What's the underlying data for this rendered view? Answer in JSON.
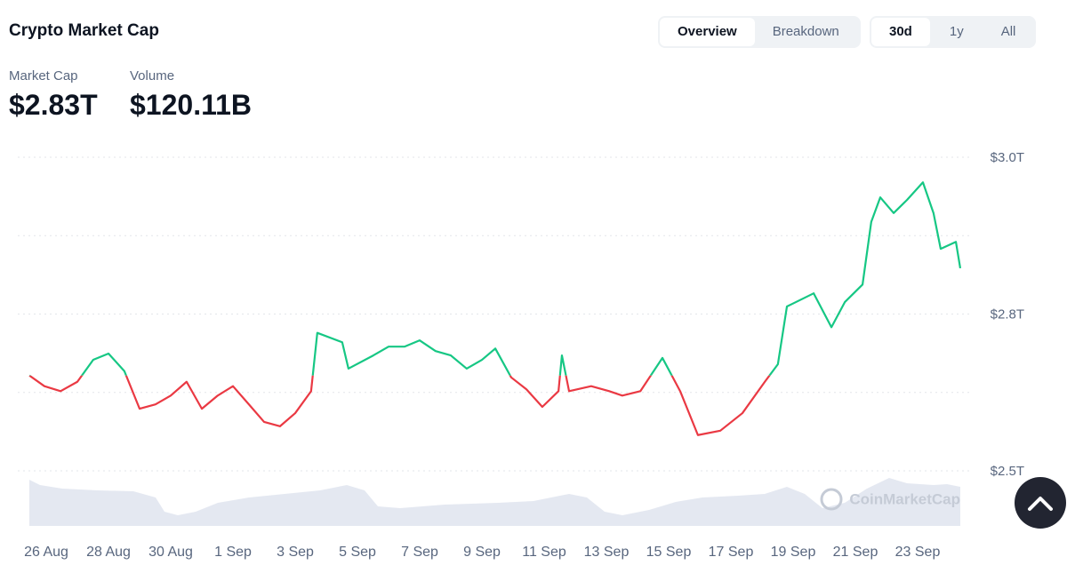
{
  "header": {
    "title": "Crypto Market Cap"
  },
  "stats": [
    {
      "label": "Market Cap",
      "value": "$2.83T"
    },
    {
      "label": "Volume",
      "value": "$120.11B"
    }
  ],
  "view_tabs": [
    "Overview",
    "Breakdown"
  ],
  "range_tabs": [
    "30d",
    "1y",
    "All"
  ],
  "chart_data": {
    "type": "line",
    "watermark": "CoinMarketCap",
    "x": [
      -0.54,
      -0.06,
      0.46,
      1.0,
      1.51,
      2.0,
      2.51,
      3.0,
      3.51,
      4.0,
      4.51,
      5.0,
      5.51,
      6.0,
      6.51,
      7.0,
      7.51,
      8.0,
      8.51,
      8.71,
      9.51,
      9.71,
      10.51,
      11.0,
      11.51,
      12.0,
      12.51,
      13.0,
      13.51,
      14.0,
      14.43,
      14.94,
      15.43,
      15.94,
      16.46,
      16.57,
      16.8,
      17.51,
      18.09,
      18.51,
      19.09,
      19.8,
      20.37,
      20.94,
      21.66,
      22.37,
      23.09,
      23.51,
      23.8,
      24.66,
      25.23,
      25.66,
      26.23,
      26.51,
      26.8,
      27.23,
      27.66,
      28.17,
      28.51,
      28.74,
      29.23,
      29.37
    ],
    "series": [
      {
        "name": "Market Cap",
        "up_color": "#16c784",
        "down_color": "#ea3943",
        "values": [
          2.652,
          2.635,
          2.627,
          2.642,
          2.677,
          2.687,
          2.659,
          2.599,
          2.606,
          2.62,
          2.642,
          2.599,
          2.62,
          2.635,
          2.606,
          2.578,
          2.571,
          2.592,
          2.627,
          2.72,
          2.705,
          2.663,
          2.684,
          2.698,
          2.698,
          2.708,
          2.691,
          2.684,
          2.663,
          2.677,
          2.695,
          2.649,
          2.63,
          2.602,
          2.627,
          2.684,
          2.627,
          2.635,
          2.627,
          2.62,
          2.627,
          2.68,
          2.627,
          2.557,
          2.564,
          2.592,
          2.642,
          2.67,
          2.762,
          2.783,
          2.729,
          2.769,
          2.797,
          2.897,
          2.936,
          2.911,
          2.932,
          2.96,
          2.911,
          2.854,
          2.865,
          2.823
        ]
      }
    ],
    "xlim": [
      -0.543,
      29.371
    ],
    "xticks": [
      {
        "value": 0,
        "label": "26 Aug"
      },
      {
        "value": 2,
        "label": "28 Aug"
      },
      {
        "value": 4,
        "label": "30 Aug"
      },
      {
        "value": 6,
        "label": "1 Sep"
      },
      {
        "value": 8,
        "label": "3 Sep"
      },
      {
        "value": 10,
        "label": "5 Sep"
      },
      {
        "value": 12,
        "label": "7 Sep"
      },
      {
        "value": 14,
        "label": "9 Sep"
      },
      {
        "value": 16,
        "label": "11 Sep"
      },
      {
        "value": 18,
        "label": "13 Sep"
      },
      {
        "value": 20,
        "label": "15 Sep"
      },
      {
        "value": 22,
        "label": "17 Sep"
      },
      {
        "value": 24,
        "label": "19 Sep"
      },
      {
        "value": 26,
        "label": "21 Sep"
      },
      {
        "value": 28,
        "label": "23 Sep"
      }
    ],
    "ylim": [
      2.5,
      3.0
    ],
    "yticks": [
      {
        "value": 3.0,
        "label": "$3.0T"
      },
      {
        "value": 2.75,
        "label": "$2.8T"
      },
      {
        "value": 2.5,
        "label": "$2.5T"
      }
    ],
    "minor_yticks": [
      2.875,
      2.625
    ],
    "grid": true
  }
}
